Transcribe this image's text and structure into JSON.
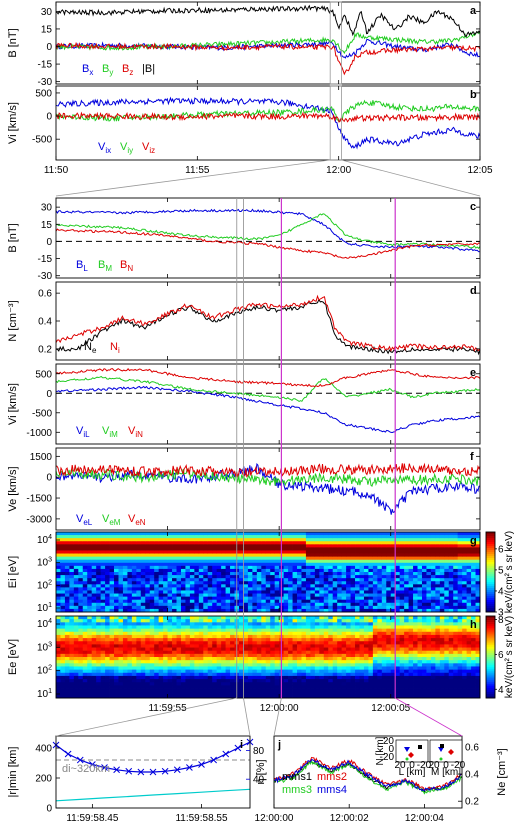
{
  "figure": {
    "zoom_box_color": "#999999",
    "marker_color": "#cc33cc",
    "colors": {
      "black": "#000000",
      "blue": "#0000dd",
      "green": "#22cc22",
      "red": "#dd0000",
      "cyan": "#00cccc",
      "gray": "#888888"
    }
  },
  "chart_data": [
    {
      "panel": "a",
      "type": "line",
      "ylabel": "B [nT]",
      "yticks": [
        30,
        15,
        0,
        -15,
        -30
      ],
      "ylim": [
        -32,
        38
      ],
      "xticks": [
        "11:50",
        "11:55",
        "12:00",
        "12:05"
      ],
      "xlim_minutes": [
        0,
        15
      ],
      "series": [
        {
          "name": "Bx",
          "color": "#0000dd",
          "x": [
            0,
            2,
            4,
            6,
            8,
            9,
            9.8,
            10.2,
            10.6,
            11,
            12,
            13,
            14,
            14.5,
            15
          ],
          "y": [
            0,
            1,
            0,
            -1,
            1,
            2,
            3,
            -10,
            -5,
            5,
            0,
            -3,
            2,
            -5,
            -8
          ]
        },
        {
          "name": "By",
          "color": "#22cc22",
          "x": [
            0,
            2,
            4,
            6,
            8,
            9,
            9.8,
            10.2,
            10.6,
            11,
            12,
            13,
            14,
            15
          ],
          "y": [
            0,
            -1,
            0,
            2,
            4,
            5,
            6,
            -5,
            10,
            8,
            6,
            4,
            5,
            12
          ]
        },
        {
          "name": "Bz",
          "color": "#dd0000",
          "x": [
            0,
            2,
            4,
            6,
            8,
            9,
            9.8,
            10.2,
            10.6,
            11,
            12,
            13,
            14,
            15
          ],
          "y": [
            1,
            0,
            0,
            -1,
            0,
            -1,
            0,
            -25,
            -8,
            -5,
            -3,
            -2,
            -1,
            -2
          ]
        },
        {
          "name": "|B|",
          "color": "#000000",
          "x": [
            0,
            0.5,
            2,
            3,
            5,
            6,
            7,
            8,
            9,
            9.5,
            9.8,
            10,
            10.2,
            10.5,
            10.8,
            11,
            11.5,
            12,
            12.5,
            13,
            13.5,
            14,
            14.5,
            15
          ],
          "y": [
            30,
            29,
            29,
            30,
            31,
            31,
            32,
            32,
            33,
            32,
            30,
            15,
            28,
            10,
            30,
            12,
            27,
            14,
            26,
            20,
            30,
            24,
            10,
            12
          ]
        }
      ],
      "legend": [
        "Bx",
        "By",
        "Bz",
        "|B|"
      ]
    },
    {
      "panel": "b",
      "type": "line",
      "ylabel": "Vi [km/s]",
      "yticks": [
        500,
        0,
        -500
      ],
      "ylim": [
        -950,
        650
      ],
      "xticks": [
        "11:50",
        "11:55",
        "12:00",
        "12:05"
      ],
      "xlim_minutes": [
        0,
        15
      ],
      "series": [
        {
          "name": "Vix",
          "color": "#0000dd",
          "x": [
            0,
            2,
            4,
            6,
            8,
            9,
            9.8,
            10,
            10.5,
            11,
            12,
            13,
            14,
            15
          ],
          "y": [
            250,
            300,
            330,
            320,
            300,
            200,
            100,
            -300,
            -700,
            -500,
            -600,
            -400,
            -300,
            -450
          ]
        },
        {
          "name": "Viy",
          "color": "#22cc22",
          "x": [
            0,
            2,
            4,
            6,
            8,
            9,
            9.8,
            10,
            10.5,
            11,
            12,
            13,
            14,
            15
          ],
          "y": [
            0,
            -50,
            0,
            50,
            80,
            120,
            150,
            -100,
            200,
            300,
            200,
            150,
            200,
            150
          ]
        },
        {
          "name": "Viz",
          "color": "#dd0000",
          "x": [
            0,
            2,
            4,
            6,
            8,
            9,
            9.8,
            10,
            10.5,
            11,
            12,
            13,
            14,
            15
          ],
          "y": [
            0,
            0,
            -20,
            0,
            -10,
            10,
            0,
            -100,
            -50,
            -50,
            -30,
            -40,
            -20,
            -30
          ]
        }
      ],
      "legend": [
        "Vix",
        "Viy",
        "Viz"
      ]
    },
    {
      "panel": "c",
      "type": "line",
      "ylabel": "B [nT]",
      "yticks": [
        30,
        15,
        0,
        -15,
        -30
      ],
      "ylim": [
        -32,
        38
      ],
      "xticks": [
        "11:59:55",
        "12:00:00",
        "12:00:05"
      ],
      "xlim_seconds": [
        -10,
        9
      ],
      "series": [
        {
          "name": "BL",
          "color": "#0000dd",
          "x": [
            -10,
            -7,
            -4,
            -1,
            1,
            2,
            3,
            4,
            5,
            6,
            7,
            9
          ],
          "y": [
            26,
            25,
            27,
            27,
            24,
            15,
            -2,
            -4,
            -5,
            -4,
            -5,
            -8
          ]
        },
        {
          "name": "BM",
          "color": "#22cc22",
          "x": [
            -10,
            -7,
            -4,
            -1,
            0,
            1,
            2,
            3,
            4,
            5,
            6,
            7,
            9
          ],
          "y": [
            14,
            12,
            5,
            2,
            5,
            15,
            25,
            5,
            0,
            -3,
            -2,
            -3,
            -5
          ]
        },
        {
          "name": "BN",
          "color": "#dd0000",
          "x": [
            -10,
            -7,
            -5,
            -3,
            -1,
            0,
            1,
            2,
            3,
            4,
            5,
            6,
            7,
            9
          ],
          "y": [
            10,
            8,
            5,
            0,
            -2,
            -5,
            -8,
            -10,
            -15,
            -12,
            -8,
            -4,
            -3,
            -2
          ]
        }
      ],
      "legend": [
        "BL",
        "BM",
        "BN"
      ]
    },
    {
      "panel": "d",
      "type": "line",
      "ylabel": "N [cm-3]",
      "yticks": [
        0.6,
        0.4,
        0.2
      ],
      "ylim": [
        0.12,
        0.68
      ],
      "xticks": [
        "11:59:55",
        "12:00:00",
        "12:00:05"
      ],
      "xlim_seconds": [
        -10,
        9
      ],
      "series": [
        {
          "name": "Ne",
          "color": "#000000",
          "x": [
            -10,
            -9,
            -8,
            -7,
            -6,
            -5,
            -4,
            -3,
            -2,
            -1,
            0,
            1,
            2,
            2.5,
            3,
            4,
            5,
            6,
            7,
            8,
            9
          ],
          "y": [
            0.2,
            0.2,
            0.32,
            0.4,
            0.35,
            0.45,
            0.5,
            0.4,
            0.45,
            0.5,
            0.48,
            0.5,
            0.55,
            0.3,
            0.22,
            0.2,
            0.18,
            0.2,
            0.19,
            0.2,
            0.18
          ]
        },
        {
          "name": "Ni",
          "color": "#dd0000",
          "x": [
            -10,
            -9,
            -8,
            -7,
            -6,
            -5,
            -4,
            -3,
            -2,
            -1,
            0,
            1,
            2,
            2.5,
            3,
            4,
            5,
            6,
            7,
            8,
            9
          ],
          "y": [
            0.25,
            0.3,
            0.35,
            0.42,
            0.38,
            0.45,
            0.52,
            0.42,
            0.48,
            0.52,
            0.5,
            0.52,
            0.58,
            0.35,
            0.25,
            0.22,
            0.2,
            0.22,
            0.21,
            0.22,
            0.2
          ]
        }
      ],
      "legend": [
        "Ne",
        "Ni"
      ]
    },
    {
      "panel": "e",
      "type": "line",
      "ylabel": "Vi [km/s]",
      "yticks": [
        500,
        0,
        -500,
        -1000
      ],
      "ylim": [
        -1300,
        750
      ],
      "xticks": [
        "11:59:55",
        "12:00:00",
        "12:00:05"
      ],
      "xlim_seconds": [
        -10,
        9
      ],
      "series": [
        {
          "name": "ViL",
          "color": "#0000dd",
          "x": [
            -10,
            -8,
            -6,
            -4,
            -2,
            0,
            1,
            2,
            3,
            4,
            5,
            6,
            7,
            9
          ],
          "y": [
            50,
            100,
            150,
            50,
            -100,
            -300,
            -400,
            -500,
            -800,
            -900,
            -1000,
            -800,
            -700,
            -600
          ]
        },
        {
          "name": "ViM",
          "color": "#22cc22",
          "x": [
            -10,
            -8,
            -6,
            -4,
            -2,
            0,
            1,
            2,
            3,
            4,
            5,
            6,
            7,
            9
          ],
          "y": [
            300,
            400,
            300,
            100,
            0,
            -100,
            -200,
            400,
            -100,
            0,
            100,
            -100,
            0,
            100
          ]
        },
        {
          "name": "ViN",
          "color": "#dd0000",
          "x": [
            -10,
            -8,
            -6,
            -4,
            -2,
            0,
            1,
            2,
            3,
            4,
            5,
            6,
            7,
            9
          ],
          "y": [
            500,
            600,
            600,
            400,
            300,
            250,
            200,
            200,
            400,
            500,
            600,
            500,
            400,
            400
          ]
        }
      ],
      "legend": [
        "ViL",
        "ViM",
        "ViN"
      ]
    },
    {
      "panel": "f",
      "type": "line",
      "ylabel": "Ve [km/s]",
      "yticks": [
        1500,
        0,
        -1500,
        -3000
      ],
      "ylim": [
        -3800,
        2100
      ],
      "xticks": [
        "11:59:55",
        "12:00:00",
        "12:00:05"
      ],
      "xlim_seconds": [
        -10,
        9
      ],
      "series": [
        {
          "name": "VeL",
          "color": "#0000dd",
          "x": [
            -10,
            -8,
            -6,
            -4,
            -2,
            -1,
            0,
            2,
            4,
            5,
            6,
            8,
            9
          ],
          "y": [
            100,
            0,
            200,
            -200,
            300,
            600,
            -500,
            -800,
            -1200,
            -2500,
            -1000,
            -600,
            -900
          ]
        },
        {
          "name": "VeM",
          "color": "#22cc22",
          "x": [
            -10,
            -8,
            -6,
            -4,
            -2,
            0,
            2,
            4,
            6,
            8,
            9
          ],
          "y": [
            300,
            200,
            0,
            300,
            -100,
            -300,
            0,
            -300,
            -200,
            -100,
            -300
          ]
        },
        {
          "name": "VeN",
          "color": "#dd0000",
          "x": [
            -10,
            -8,
            -6,
            -4,
            -2,
            0,
            2,
            4,
            6,
            8,
            9
          ],
          "y": [
            500,
            600,
            400,
            500,
            300,
            400,
            600,
            500,
            700,
            400,
            500
          ]
        }
      ],
      "legend": [
        "VeL",
        "VeM",
        "VeN"
      ]
    },
    {
      "panel": "g",
      "type": "heatmap",
      "ylabel": "Ei [eV]",
      "yticks": [
        "10^4",
        "10^3",
        "10^2",
        "10^1"
      ],
      "colorbar_label": "keV/(cm2 s sr keV)",
      "colorbar_ticks": [
        6,
        5,
        4,
        3
      ],
      "colorbar_range": [
        3,
        6.8
      ],
      "xticks": [
        "11:59:55",
        "12:00:00",
        "12:00:05"
      ]
    },
    {
      "panel": "h",
      "type": "heatmap",
      "ylabel": "Ee [eV]",
      "yticks": [
        "10^4",
        "10^3",
        "10^2",
        "10^1"
      ],
      "colorbar_label": "keV/(cm2 s sr keV)",
      "colorbar_ticks": [
        8,
        6,
        4
      ],
      "colorbar_range": [
        3.5,
        8.2
      ],
      "xticks": [
        "11:59:55",
        "12:00:00",
        "12:00:05"
      ]
    },
    {
      "panel": "i",
      "type": "line",
      "ylabel": "|r|min [km]",
      "yticks": [
        400,
        200,
        0
      ],
      "ylim": [
        0,
        480
      ],
      "right_ylabel": "η [%]",
      "right_yticks": [
        80,
        40
      ],
      "xticks": [
        "11:59:58.45",
        "11:59:58.55"
      ],
      "annotation": "di~320km",
      "di_km": 320,
      "series": [
        {
          "name": "|r|min",
          "color": "#0000dd",
          "x": [
            0,
            1,
            2,
            3,
            4,
            5,
            6,
            7,
            8,
            9,
            10,
            11,
            12,
            13,
            14,
            15,
            16
          ],
          "y": [
            420,
            360,
            320,
            290,
            270,
            255,
            245,
            240,
            240,
            245,
            255,
            270,
            290,
            320,
            360,
            400,
            440
          ]
        },
        {
          "name": "η",
          "color": "#00cccc",
          "x": [
            0,
            2,
            4,
            6,
            8,
            10,
            12,
            14,
            16
          ],
          "y": [
            10,
            12,
            14,
            16,
            18,
            20,
            22,
            24,
            26
          ]
        }
      ]
    },
    {
      "panel": "j",
      "type": "line",
      "ylabel": "Ne [cm-3]",
      "yticks": [
        0.6,
        0.4,
        0.2
      ],
      "ylim": [
        0.15,
        0.68
      ],
      "xticks": [
        "12:00:00",
        "12:00:02",
        "12:00:04"
      ],
      "legend": [
        "mms1",
        "mms2",
        "mms3",
        "mms4"
      ],
      "inset_xlabels": [
        "L [km]",
        "M [km]"
      ],
      "inset_ylabel": "N [km]",
      "inset_yticks": [
        "20",
        "0",
        "-20"
      ],
      "inset_xticks": [
        "20",
        "0",
        "-20",
        "20",
        "0",
        "-20"
      ],
      "series": [
        {
          "name": "mms1",
          "color": "#000000",
          "x": [
            0,
            0.5,
            1,
            1.5,
            2,
            2.5,
            3,
            3.5,
            4,
            4.5,
            5
          ],
          "y": [
            0.35,
            0.38,
            0.5,
            0.42,
            0.48,
            0.38,
            0.3,
            0.35,
            0.28,
            0.3,
            0.38
          ]
        },
        {
          "name": "mms2",
          "color": "#dd0000",
          "x": [
            0,
            0.5,
            1,
            1.5,
            2,
            2.5,
            3,
            3.5,
            4,
            4.5,
            5
          ],
          "y": [
            0.36,
            0.4,
            0.52,
            0.44,
            0.5,
            0.4,
            0.32,
            0.36,
            0.29,
            0.31,
            0.4
          ]
        },
        {
          "name": "mms3",
          "color": "#22cc22",
          "x": [
            0,
            0.5,
            1,
            1.5,
            2,
            2.5,
            3,
            3.5,
            4,
            4.5,
            5
          ],
          "y": [
            0.34,
            0.37,
            0.49,
            0.41,
            0.47,
            0.37,
            0.29,
            0.34,
            0.27,
            0.29,
            0.37
          ]
        },
        {
          "name": "mms4",
          "color": "#0000dd",
          "x": [
            0,
            0.5,
            1,
            1.5,
            2,
            2.5,
            3,
            3.5,
            4,
            4.5,
            5
          ],
          "y": [
            0.35,
            0.39,
            0.51,
            0.43,
            0.49,
            0.39,
            0.31,
            0.35,
            0.28,
            0.3,
            0.39
          ]
        }
      ]
    }
  ]
}
